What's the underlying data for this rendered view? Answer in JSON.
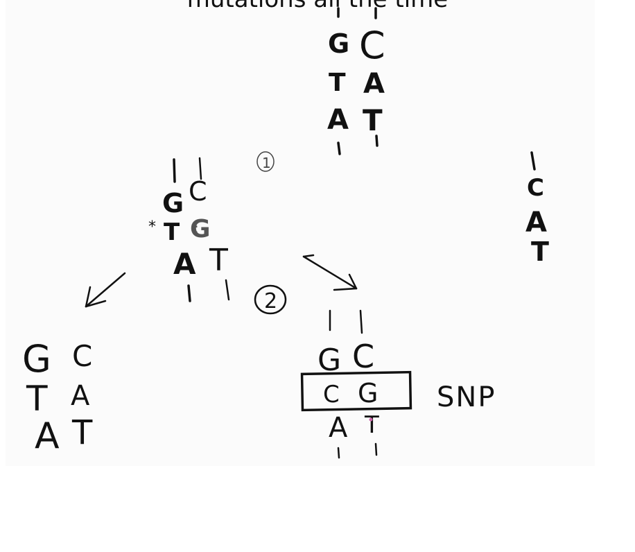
{
  "title": "mutations all the time",
  "colors": {
    "ink": "#111111",
    "board": "#fbfbfb",
    "page": "#ffffff",
    "accent_t": "#cc66aa"
  },
  "strand_top": {
    "left": [
      "G",
      "T",
      "A"
    ],
    "right": [
      "C",
      "A",
      "T"
    ]
  },
  "strand_right": {
    "single": [
      "C",
      "A",
      "T"
    ]
  },
  "strand_mutated": {
    "star": "*",
    "left": [
      "G",
      "T",
      "A"
    ],
    "right": [
      "C",
      "G",
      "T"
    ],
    "mismatch_mark": ":"
  },
  "step_labels": {
    "one": "1",
    "two": "2"
  },
  "strand_outcome_left": {
    "left": [
      "G",
      "T",
      "A"
    ],
    "right": [
      "C",
      "A",
      "T"
    ]
  },
  "strand_outcome_snp": {
    "left": [
      "G",
      "C",
      "A"
    ],
    "right": [
      "C",
      "G",
      "T"
    ],
    "label": "SNP"
  }
}
